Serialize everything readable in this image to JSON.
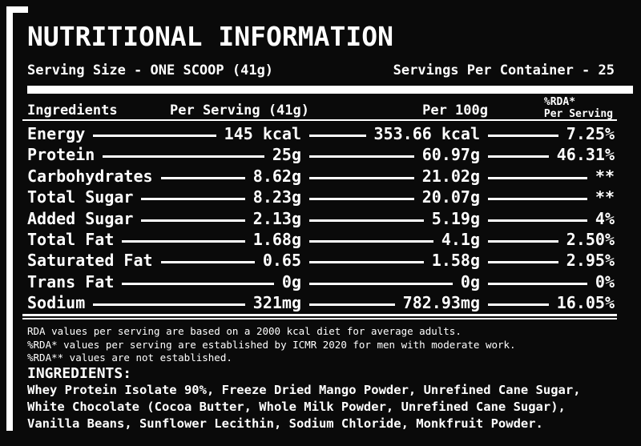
{
  "title": "NUTRITIONAL INFORMATION",
  "serving": {
    "size_label": "Serving Size - ONE SCOOP (41g)",
    "per_container_label": "Servings Per Container - 25"
  },
  "table": {
    "headers": {
      "ingredients": "Ingredients",
      "per_serving": "Per Serving (41g)",
      "per_100g": "Per 100g",
      "rda_line1": "%RDA*",
      "rda_line2": "Per Serving"
    },
    "rows": [
      {
        "name": "Energy",
        "per_serving": "145 kcal",
        "per_100g": "353.66 kcal",
        "rda": "7.25%"
      },
      {
        "name": "Protein",
        "per_serving": "25g",
        "per_100g": "60.97g",
        "rda": "46.31%"
      },
      {
        "name": "Carbohydrates",
        "per_serving": "8.62g",
        "per_100g": "21.02g",
        "rda": "**"
      },
      {
        "name": "Total Sugar",
        "per_serving": "8.23g",
        "per_100g": "20.07g",
        "rda": "**"
      },
      {
        "name": "Added Sugar",
        "per_serving": "2.13g",
        "per_100g": "5.19g",
        "rda": "4%"
      },
      {
        "name": "Total Fat",
        "per_serving": "1.68g",
        "per_100g": "4.1g",
        "rda": "2.50%"
      },
      {
        "name": "Saturated Fat",
        "per_serving": "0.65",
        "per_100g": "1.58g",
        "rda": "2.95%"
      },
      {
        "name": "Trans Fat",
        "per_serving": "0g",
        "per_100g": "0g",
        "rda": "0%"
      },
      {
        "name": "Sodium",
        "per_serving": "321mg",
        "per_100g": "782.93mg",
        "rda": "16.05%"
      }
    ]
  },
  "notes": [
    "RDA values per serving are based on a 2000 kcal diet for average adults.",
    "%RDA* values per serving are established by ICMR 2020 for men with moderate work.",
    "%RDA** values are not established."
  ],
  "ingredients": {
    "heading": "INGREDIENTS:",
    "text": "Whey Protein Isolate 90%, Freeze Dried Mango Powder, Unrefined Cane Sugar, White Chocolate (Cocoa Butter, Whole Milk Powder, Unrefined Cane Sugar), Vanilla Beans, Sunflower Lecithin, Sodium Chloride, Monkfruit Powder."
  },
  "colors": {
    "background": "#0a0a0a",
    "foreground": "#ffffff"
  }
}
